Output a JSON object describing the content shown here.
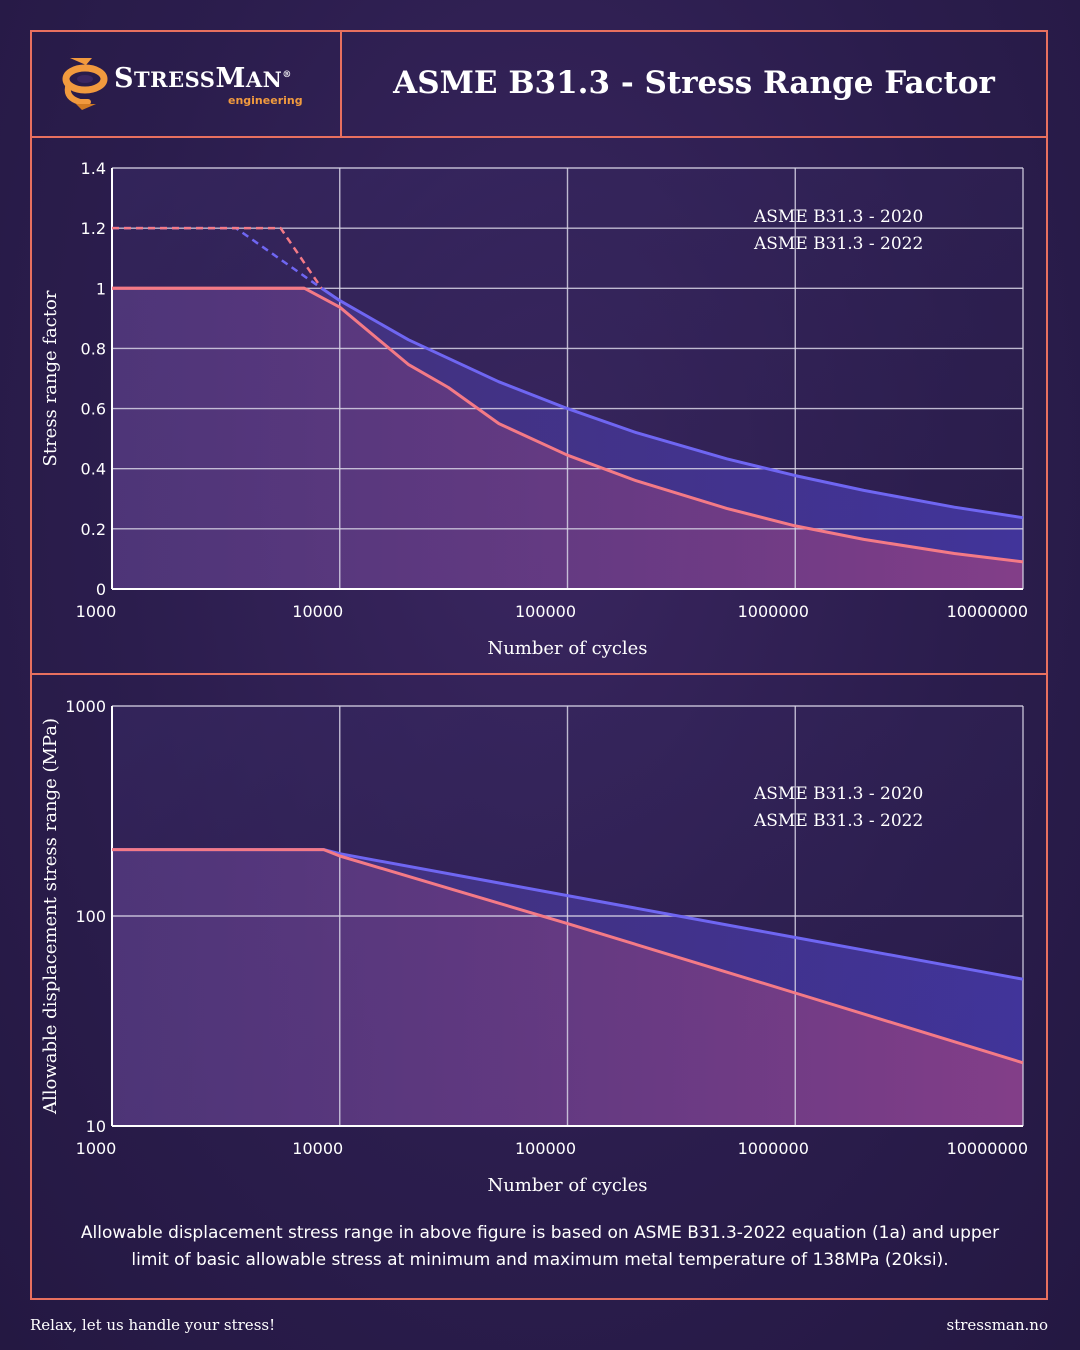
{
  "brand": {
    "name_big_1": "S",
    "name_small_1": "TRESS",
    "name_big_2": "M",
    "name_small_2": "AN",
    "reg": "®",
    "sub": "engineering"
  },
  "title": "ASME B31.3 - Stress Range Factor",
  "note": "Allowable displacement stress range in above figure is based on ASME B31.3-2022 equation (1a) and upper limit of basic allowable stress at minimum and maximum metal temperature of 138MPa (20ksi).",
  "footer": {
    "tagline": "Relax, let us handle your stress!",
    "url": "stressman.no"
  },
  "colors": {
    "accent": "#e8705f",
    "series_2020": "#6f66f2",
    "series_2022": "#f47a86",
    "brand_orange": "#f19a3e"
  },
  "icons": {
    "logo": "spring-coil-icon"
  },
  "chart_data": [
    {
      "type": "line",
      "xscale": "log",
      "xlabel": "Number of cycles",
      "ylabel": "Stress range factor",
      "xlim": [
        1000,
        10000000
      ],
      "ylim": [
        0,
        1.4
      ],
      "xticks": [
        "1000",
        "10000",
        "100000",
        "1000000",
        "10000000"
      ],
      "yticks": [
        "0",
        "0.2",
        "0.4",
        "0.6",
        "0.8",
        "1",
        "1.2",
        "1.4"
      ],
      "grid": true,
      "legend_position": "top-right",
      "series": [
        {
          "name": "ASME B31.3 - 2020",
          "color": "#6f66f2",
          "x": [
            8320,
            10000,
            20000,
            50000,
            100000,
            200000,
            500000,
            1000000,
            2000000,
            5000000,
            10000000
          ],
          "y": [
            1.0,
            0.959,
            0.829,
            0.689,
            0.6,
            0.52,
            0.433,
            0.377,
            0.328,
            0.272,
            0.237
          ]
        },
        {
          "name": "ASME B31.3 - 2022",
          "color": "#f47a86",
          "x": [
            7000,
            10000,
            20000,
            30000,
            50000,
            100000,
            200000,
            500000,
            1000000,
            2000000,
            5000000,
            10000000
          ],
          "y": [
            1.0,
            0.937,
            0.747,
            0.67,
            0.55,
            0.445,
            0.36,
            0.268,
            0.21,
            0.165,
            0.118,
            0.09
          ]
        }
      ],
      "dashed": [
        {
          "color": "#6f66f2",
          "x": [
            1000,
            3500,
            8320
          ],
          "y": [
            1.2,
            1.2,
            1.0
          ]
        },
        {
          "color": "#f47a86",
          "x": [
            1000,
            5500,
            8320
          ],
          "y": [
            1.2,
            1.2,
            1.0
          ]
        }
      ],
      "plateau_2022": {
        "x": [
          1000,
          7000
        ],
        "y": [
          1.0,
          1.0
        ]
      }
    },
    {
      "type": "line",
      "xscale": "log",
      "yscale": "log",
      "xlabel": "Number of cycles",
      "ylabel": "Allowable displacement stress range (MPa)",
      "xlim": [
        1000,
        10000000
      ],
      "ylim": [
        10,
        1000
      ],
      "xticks": [
        "1000",
        "10000",
        "100000",
        "1000000",
        "10000000"
      ],
      "yticks": [
        "10",
        "100",
        "1000"
      ],
      "grid": true,
      "legend_position": "top-right",
      "series": [
        {
          "name": "ASME B31.3 - 2020",
          "color": "#6f66f2",
          "x": [
            1000,
            8500,
            10000,
            100000,
            1000000,
            10000000
          ],
          "y": [
            207,
            207,
            198,
            125,
            79,
            50
          ]
        },
        {
          "name": "ASME B31.3 - 2022",
          "color": "#f47a86",
          "x": [
            1000,
            8500,
            10000,
            100000,
            1000000,
            10000000
          ],
          "y": [
            207,
            207,
            193,
            92,
            43,
            20
          ]
        }
      ]
    }
  ]
}
